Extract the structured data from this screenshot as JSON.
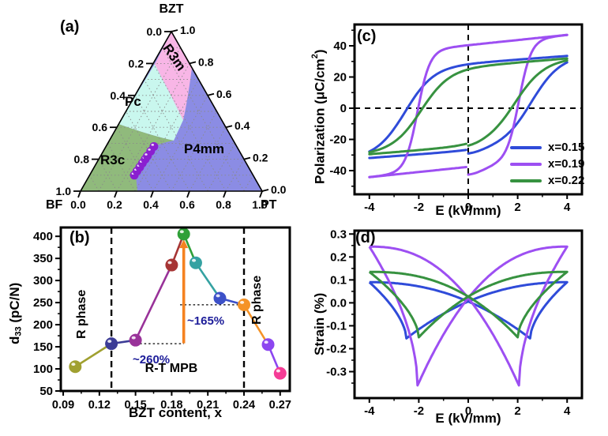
{
  "ui": {
    "panel_labels": {
      "a": "(a)",
      "b": "(b)",
      "c": "(c)",
      "d": "(d)"
    }
  },
  "chart_data": [
    {
      "panel": "a",
      "type": "ternary",
      "corner_labels": {
        "top": "BZT",
        "bottom_left": "BF",
        "bottom_right": "PT"
      },
      "axis_ticks": {
        "left": [
          "0.0",
          "0.2",
          "0.4",
          "0.6",
          "0.8",
          "1.0"
        ],
        "right": [
          "1.0",
          "0.8",
          "0.6",
          "0.4",
          "0.2",
          "0.0"
        ],
        "bottom": [
          "0.0",
          "0.2",
          "0.4",
          "0.6",
          "0.8",
          "1.0"
        ]
      },
      "regions": [
        {
          "label": "R3m",
          "color": "#f8b6e6"
        },
        {
          "label": "Pc",
          "color": "#c9f7ee"
        },
        {
          "label": "R3c",
          "color": "#90ba7c"
        },
        {
          "label": "P4mm",
          "color": "#8b8ce4"
        }
      ],
      "sample_points": {
        "color": "#8a1fd0",
        "ternary_coords": [
          {
            "bzt": 0.1,
            "pt": 0.246
          },
          {
            "bzt": 0.125,
            "pt": 0.248
          },
          {
            "bzt": 0.15,
            "pt": 0.251
          },
          {
            "bzt": 0.175,
            "pt": 0.253
          },
          {
            "bzt": 0.2,
            "pt": 0.256
          },
          {
            "bzt": 0.22,
            "pt": 0.258
          },
          {
            "bzt": 0.25,
            "pt": 0.261
          },
          {
            "bzt": 0.28,
            "pt": 0.264
          }
        ]
      }
    },
    {
      "panel": "b",
      "type": "scatter",
      "xlabel": "BZT content, x",
      "ylabel": {
        "pre": "d",
        "sub": "33",
        "post": " (pC/N)"
      },
      "xlim": [
        0.088,
        0.278
      ],
      "ylim": [
        50,
        420
      ],
      "xticks": [
        0.09,
        0.12,
        0.15,
        0.18,
        0.21,
        0.24,
        0.27
      ],
      "yticks": [
        50,
        100,
        150,
        200,
        250,
        300,
        350,
        400
      ],
      "points": [
        {
          "x": 0.1,
          "d33": 105,
          "color": "#a0a030"
        },
        {
          "x": 0.13,
          "d33": 157,
          "color": "#3c3c96"
        },
        {
          "x": 0.15,
          "d33": 165,
          "color": "#993299"
        },
        {
          "x": 0.18,
          "d33": 335,
          "color": "#a63434"
        },
        {
          "x": 0.19,
          "d33": 405,
          "color": "#2fa038"
        },
        {
          "x": 0.2,
          "d33": 340,
          "color": "#35a2a2"
        },
        {
          "x": 0.22,
          "d33": 260,
          "color": "#3c50c8"
        },
        {
          "x": 0.24,
          "d33": 245,
          "color": "#f59327"
        },
        {
          "x": 0.26,
          "d33": 155,
          "color": "#8c46f0"
        },
        {
          "x": 0.27,
          "d33": 90,
          "color": "#f53c96"
        }
      ],
      "phase_boundaries_x": [
        0.13,
        0.24
      ],
      "region_labels": {
        "left": "R phase",
        "middle": "R-T MPB",
        "right": "R phase"
      },
      "annotations": [
        {
          "text": "~260%",
          "color": "#1c1c99"
        },
        {
          "text": "~165%",
          "color": "#1c1c99"
        }
      ],
      "arrow": {
        "x": 0.19,
        "y_from": 158,
        "y_to": 393,
        "color": "#f58220"
      },
      "reference_lines": [
        {
          "y": 157,
          "x_from": 0.15,
          "x_to": 0.19
        },
        {
          "y": 245,
          "x_from": 0.187,
          "x_to": 0.24
        }
      ]
    },
    {
      "panel": "c",
      "type": "line",
      "subtype": "P-E hysteresis loops",
      "xlabel": "E (kV/mm)",
      "ylabel": {
        "pre": "Polarization (μC/cm",
        "sup": "2",
        "post": ")"
      },
      "xlim": [
        -4.6,
        4.6
      ],
      "ylim": [
        -55,
        54
      ],
      "xticks": [
        -4,
        -2,
        0,
        2,
        4
      ],
      "yticks": [
        -40,
        -20,
        0,
        20,
        40
      ],
      "zero_lines": true,
      "legend": [
        {
          "label": "x=0.15",
          "color": "#2f4bd9"
        },
        {
          "label": "x=0.19",
          "color": "#9d4ff2"
        },
        {
          "label": "x=0.22",
          "color": "#379240"
        }
      ],
      "series": [
        {
          "name": "x=0.15",
          "color": "#2f4bd9",
          "Pmax": 33.5,
          "Pr": 28,
          "Ec": 2.55,
          "Ps": 28,
          "width": 1.15,
          "slope": 1.18,
          "offset": 0.8,
          "gap": 2.5
        },
        {
          "name": "x=0.19",
          "color": "#9d4ff2",
          "Pmax": 47,
          "Pr": 40,
          "Ec": 2.05,
          "Ps": 39,
          "width": 0.5,
          "slope": 1.65,
          "offset": 1.4,
          "gap": 5
        },
        {
          "name": "x=0.22",
          "color": "#379240",
          "Pmax": 32,
          "Pr": 25,
          "Ec": 1.9,
          "Ps": 25.5,
          "width": 1.15,
          "slope": 1.3,
          "offset": 1.2,
          "gap": 1.5
        }
      ]
    },
    {
      "panel": "d",
      "type": "line",
      "subtype": "bipolar strain butterfly loops",
      "xlabel": "E (kV/mm)",
      "ylabel": "Strain (%)",
      "xlim": [
        -4.6,
        4.6
      ],
      "ylim": [
        -0.415,
        0.315
      ],
      "xticks": [
        -4,
        -2,
        0,
        2,
        4
      ],
      "yticks": [
        -0.3,
        -0.2,
        -0.1,
        0.0,
        0.1,
        0.2,
        0.3
      ],
      "series": [
        {
          "name": "x=0.15",
          "color": "#2f4bd9",
          "Ec": 2.5,
          "Smax": 0.09,
          "Smin": -0.155,
          "p": 2.2,
          "q": 0.6
        },
        {
          "name": "x=0.19",
          "color": "#9d4ff2",
          "Ec": 2.05,
          "Smax": 0.245,
          "Smin": -0.36,
          "p": 2.4,
          "q": 0.55
        },
        {
          "name": "x=0.22",
          "color": "#379240",
          "Ec": 2.0,
          "Smax": 0.135,
          "Smin": -0.15,
          "p": 2.4,
          "q": 0.6
        }
      ]
    }
  ]
}
